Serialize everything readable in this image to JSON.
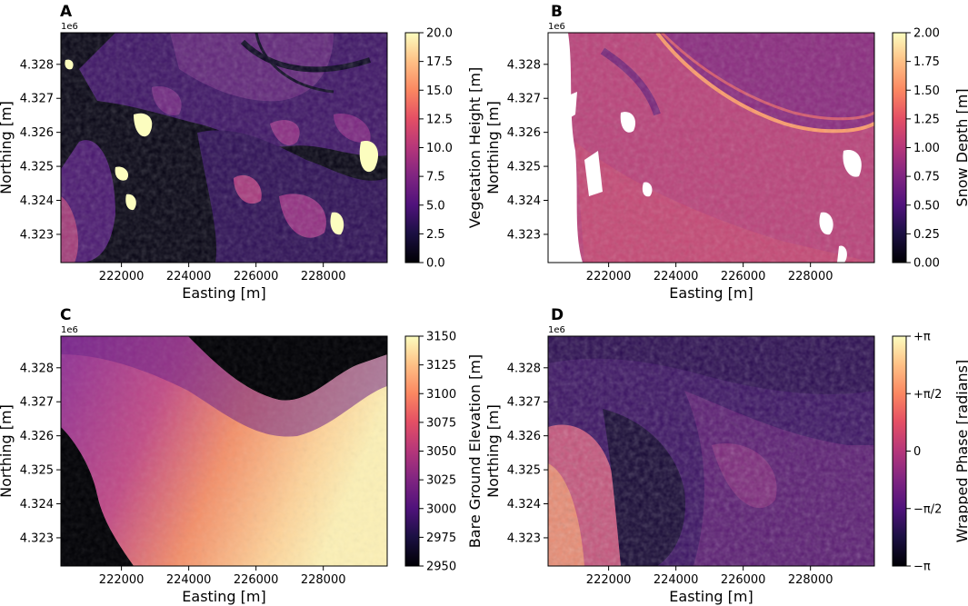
{
  "chart_data": [
    {
      "panel": "A",
      "type": "heatmap",
      "xlabel": "Easting [m]",
      "ylabel": "Northing [m]",
      "y_offset_label": "1e6",
      "xticks": [
        "222000",
        "224000",
        "226000",
        "228000"
      ],
      "yticks": [
        "4.328",
        "4.327",
        "4.326",
        "4.325",
        "4.324",
        "4.323"
      ],
      "xlim": [
        220200,
        229900
      ],
      "ylim": [
        4.32217,
        4.32893
      ],
      "colorbar": {
        "label": "Vegetation Height [m]",
        "ticks": [
          "0.0",
          "2.5",
          "5.0",
          "7.5",
          "10.0",
          "12.5",
          "15.0",
          "17.5",
          "20.0"
        ],
        "range": [
          0,
          20
        ],
        "colormap": "magma"
      }
    },
    {
      "panel": "B",
      "type": "heatmap",
      "xlabel": "Easting [m]",
      "ylabel": "Northing [m]",
      "y_offset_label": "1e6",
      "xticks": [
        "222000",
        "224000",
        "226000",
        "228000"
      ],
      "yticks": [
        "4.328",
        "4.327",
        "4.326",
        "4.325",
        "4.324",
        "4.323"
      ],
      "xlim": [
        220200,
        229900
      ],
      "ylim": [
        4.32217,
        4.32893
      ],
      "colorbar": {
        "label": "Snow Depth [m]",
        "ticks": [
          "0.00",
          "0.25",
          "0.50",
          "0.75",
          "1.00",
          "1.25",
          "1.50",
          "1.75",
          "2.00"
        ],
        "range": [
          0,
          2
        ],
        "colormap": "magma"
      }
    },
    {
      "panel": "C",
      "type": "heatmap",
      "xlabel": "Easting [m]",
      "ylabel": "Northing [m]",
      "y_offset_label": "1e6",
      "xticks": [
        "222000",
        "224000",
        "226000",
        "228000"
      ],
      "yticks": [
        "4.328",
        "4.327",
        "4.326",
        "4.325",
        "4.324",
        "4.323"
      ],
      "xlim": [
        220200,
        229900
      ],
      "ylim": [
        4.32217,
        4.32893
      ],
      "colorbar": {
        "label": "Bare Ground Elevation [m]",
        "ticks": [
          "2950",
          "2975",
          "3000",
          "3025",
          "3050",
          "3075",
          "3100",
          "3125",
          "3150"
        ],
        "range": [
          2950,
          3150
        ],
        "colormap": "magma"
      }
    },
    {
      "panel": "D",
      "type": "heatmap",
      "xlabel": "Easting [m]",
      "ylabel": "Northing [m]",
      "y_offset_label": "1e6",
      "xticks": [
        "222000",
        "224000",
        "226000",
        "228000"
      ],
      "yticks": [
        "4.328",
        "4.327",
        "4.326",
        "4.325",
        "4.324",
        "4.323"
      ],
      "xlim": [
        220200,
        229900
      ],
      "ylim": [
        4.32217,
        4.32893
      ],
      "colorbar": {
        "label": "Wrapped Phase [radians]",
        "ticks": [
          "−π",
          "−π/2",
          "0",
          "+π/2",
          "+π"
        ],
        "range": [
          -3.14159,
          3.14159
        ],
        "colormap": "magma"
      }
    }
  ]
}
